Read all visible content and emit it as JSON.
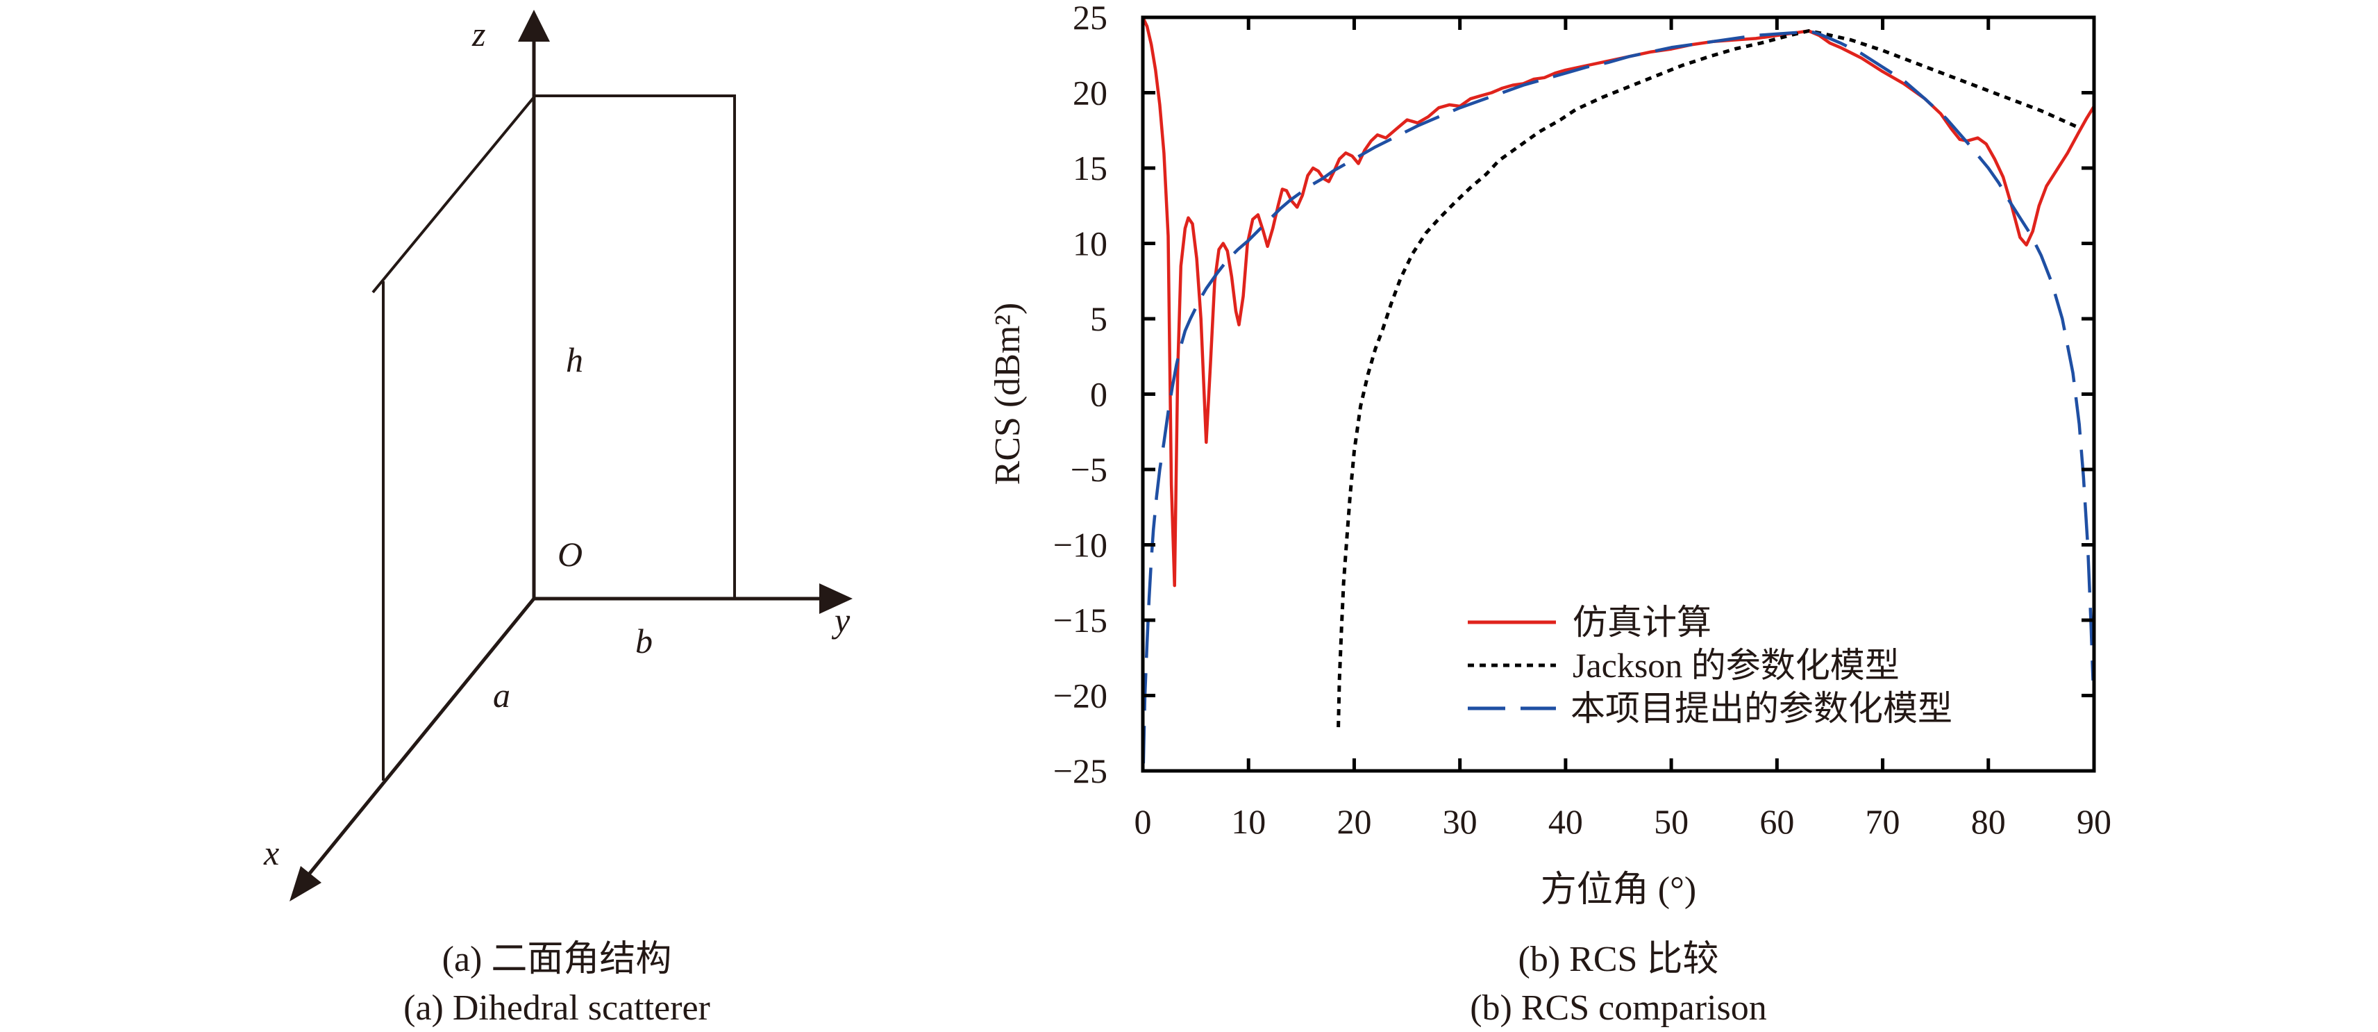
{
  "diagram": {
    "axis_labels": {
      "x": "x",
      "y": "y",
      "z": "z"
    },
    "dimension_labels": {
      "a": "a",
      "b": "b",
      "h": "h",
      "origin": "O"
    },
    "caption_cn": "(a) 二面角结构",
    "caption_en": "(a) Dihedral scatterer"
  },
  "colors": {
    "simulation": "#e0231c",
    "jackson": "#000000",
    "proposed": "#1f4fa3",
    "ink": "#231815"
  },
  "chart_data": {
    "type": "line",
    "title": "",
    "xlabel": "方位角 (°)",
    "ylabel": "RCS (dBm²)",
    "xlim": [
      0,
      90
    ],
    "ylim": [
      -25,
      25
    ],
    "xticks": [
      0,
      10,
      20,
      30,
      40,
      50,
      60,
      70,
      80,
      90
    ],
    "yticks": [
      25,
      20,
      15,
      10,
      5,
      0,
      -5,
      -10,
      -15,
      -20,
      -25
    ],
    "xtick_labels": [
      "0",
      "10",
      "20",
      "30",
      "40",
      "50",
      "60",
      "70",
      "80",
      "90"
    ],
    "ytick_labels": [
      "25",
      "20",
      "15",
      "10",
      "5",
      "0",
      "−5",
      "−10",
      "−15",
      "−20",
      "−25"
    ],
    "grid": false,
    "legend_position": "lower-center",
    "caption_cn": "(b) RCS 比较",
    "caption_en": "(b) RCS comparison",
    "series": [
      {
        "name": "仿真计算",
        "style": "solid",
        "color": "#e0231c",
        "x": [
          0,
          0.4,
          0.8,
          1.2,
          1.6,
          2.0,
          2.4,
          2.7,
          3.0,
          3.3,
          3.6,
          4.0,
          4.3,
          4.7,
          5.1,
          5.5,
          6.0,
          6.4,
          6.8,
          7.2,
          7.6,
          8.0,
          8.4,
          8.8,
          9.1,
          9.5,
          9.9,
          10.4,
          10.9,
          11.4,
          11.8,
          12.3,
          12.8,
          13.2,
          13.6,
          14.1,
          14.6,
          15.1,
          15.6,
          16.1,
          16.6,
          17.1,
          17.6,
          18.1,
          18.6,
          19.2,
          19.8,
          20.4,
          21.0,
          21.6,
          22.2,
          23.0,
          24.0,
          25.0,
          26.0,
          27.0,
          28.0,
          29.0,
          30.0,
          31.0,
          32.0,
          33.0,
          34.0,
          35.0,
          36.0,
          37.0,
          38.0,
          39.0,
          40.0,
          42.0,
          44.0,
          46.0,
          48.0,
          50.0,
          52.0,
          54.0,
          56.0,
          58.0,
          60.0,
          62.0,
          63.0,
          64.0,
          65.0,
          66.0,
          68.0,
          70.0,
          72.0,
          74.0,
          75.5,
          76.5,
          77.3,
          78.0,
          79.0,
          79.8,
          80.6,
          81.4,
          82.2,
          83.0,
          83.6,
          84.2,
          84.8,
          85.5,
          86.5,
          87.5,
          88.5,
          89.3,
          90.0
        ],
        "y": [
          25,
          24.4,
          23.2,
          21.5,
          19.2,
          16.0,
          10.5,
          -6.0,
          -12.7,
          1.5,
          8.5,
          11.0,
          11.7,
          11.3,
          9.0,
          5.0,
          -3.2,
          2.0,
          7.5,
          9.6,
          10.0,
          9.5,
          7.8,
          5.5,
          4.6,
          6.5,
          10.0,
          11.6,
          11.9,
          10.8,
          9.8,
          11.0,
          12.5,
          13.6,
          13.5,
          12.8,
          12.4,
          13.2,
          14.5,
          15.0,
          14.8,
          14.3,
          14.1,
          14.8,
          15.6,
          16.0,
          15.8,
          15.3,
          16.2,
          16.8,
          17.2,
          17.0,
          17.6,
          18.2,
          18.0,
          18.4,
          19.0,
          19.2,
          19.1,
          19.6,
          19.8,
          20.0,
          20.3,
          20.5,
          20.6,
          20.9,
          21.0,
          21.3,
          21.5,
          21.8,
          22.1,
          22.4,
          22.7,
          22.9,
          23.2,
          23.4,
          23.5,
          23.6,
          23.8,
          24.0,
          24.1,
          23.8,
          23.3,
          23.0,
          22.3,
          21.4,
          20.6,
          19.6,
          18.6,
          17.6,
          16.9,
          16.8,
          17.0,
          16.6,
          15.6,
          14.4,
          12.5,
          10.4,
          9.9,
          10.8,
          12.5,
          13.8,
          14.9,
          16.0,
          17.3,
          18.3,
          19.1
        ]
      },
      {
        "name": "Jackson 的参数化模型",
        "style": "dotted",
        "color": "#000000",
        "x": [
          18.5,
          18.6,
          18.8,
          19.0,
          19.3,
          19.6,
          20.0,
          20.6,
          21.3,
          22.0,
          22.7,
          23.5,
          24.4,
          25.5,
          26.8,
          28.1,
          29.5,
          31.0,
          32.5,
          33.7,
          35.5,
          37.5,
          39.5,
          41.0,
          43.5,
          46.0,
          48.5,
          51.0,
          53.6,
          56.0,
          58.5,
          61.2,
          63.0,
          64.5,
          67.0,
          70.0,
          73.0,
          76.0,
          79.0,
          82.0,
          85.0,
          88.5
        ],
        "y": [
          -22.1,
          -19.0,
          -15.5,
          -12.5,
          -9.6,
          -6.8,
          -3.8,
          -0.8,
          1.3,
          3.0,
          4.3,
          6.0,
          7.7,
          9.3,
          10.7,
          11.7,
          12.7,
          13.7,
          14.6,
          15.5,
          16.4,
          17.4,
          18.2,
          18.9,
          19.7,
          20.4,
          21.1,
          21.8,
          22.4,
          22.9,
          23.3,
          23.8,
          24.1,
          23.9,
          23.5,
          22.8,
          22.0,
          21.2,
          20.4,
          19.6,
          18.8,
          17.7
        ]
      },
      {
        "name": "本项目提出的参数化模型",
        "style": "dashed",
        "color": "#1f4fa3",
        "x": [
          0.05,
          0.2,
          0.4,
          0.6,
          0.8,
          1.0,
          1.3,
          1.6,
          2.0,
          2.4,
          2.8,
          3.2,
          3.6,
          4.0,
          4.5,
          5.0,
          5.5,
          6.0,
          7.0,
          8.0,
          9.0,
          10.0,
          11.0,
          12.0,
          13.0,
          14.0,
          15.0,
          16.0,
          17.0,
          18.0,
          19.0,
          20.0,
          22.0,
          24.0,
          26.0,
          28.0,
          30.0,
          32.0,
          34.0,
          36.0,
          38.0,
          40.0,
          42.0,
          44.0,
          46.0,
          48.0,
          50.0,
          52.0,
          54.0,
          56.0,
          58.0,
          60.0,
          62.0,
          63.0,
          64.0,
          66.0,
          68.0,
          70.0,
          72.0,
          74.0,
          76.0,
          78.0,
          80.0,
          81.0,
          82.0,
          83.0,
          84.0,
          85.0,
          86.0,
          87.0,
          88.0,
          88.6,
          89.0,
          89.4,
          89.7,
          89.9
        ],
        "y": [
          -24.5,
          -20.0,
          -16.5,
          -13.5,
          -11.0,
          -9.0,
          -6.8,
          -5.0,
          -3.2,
          -1.2,
          0.5,
          2.0,
          3.2,
          4.2,
          5.0,
          5.7,
          6.4,
          7.0,
          8.0,
          8.9,
          9.6,
          10.2,
          10.9,
          11.6,
          12.3,
          12.9,
          13.4,
          13.9,
          14.3,
          14.8,
          15.2,
          15.6,
          16.4,
          17.1,
          17.8,
          18.4,
          19.0,
          19.5,
          20.0,
          20.5,
          20.9,
          21.3,
          21.7,
          22.0,
          22.4,
          22.7,
          23.0,
          23.2,
          23.4,
          23.6,
          23.8,
          23.9,
          24.0,
          24.1,
          23.9,
          23.3,
          22.6,
          21.7,
          20.8,
          19.6,
          18.3,
          16.7,
          15.0,
          14.0,
          12.8,
          11.7,
          10.6,
          9.2,
          7.4,
          5.0,
          1.4,
          -2.0,
          -5.5,
          -10.0,
          -15.0,
          -19.0
        ]
      }
    ]
  }
}
